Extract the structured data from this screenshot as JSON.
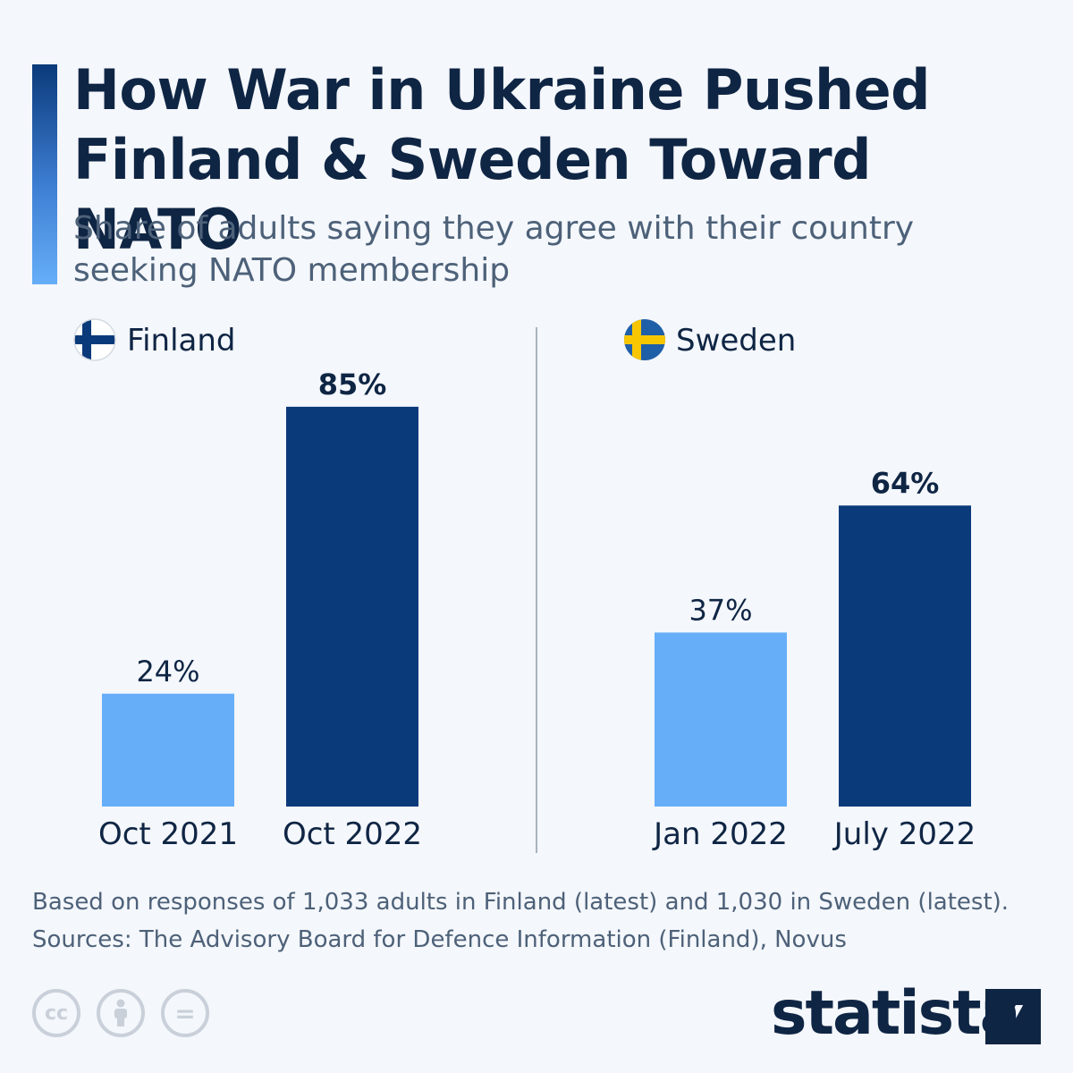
{
  "header": {
    "title_line1": "How War in Ukraine Pushed",
    "title_line2": "Finland & Sweden Toward NATO",
    "subtitle_line1": "Share of adults saying they agree with their country",
    "subtitle_line2": "seeking NATO membership"
  },
  "chart_data": {
    "type": "bar",
    "title": "How War in Ukraine Pushed Finland & Sweden Toward NATO",
    "subtitle": "Share of adults saying they agree with their country seeking NATO membership",
    "ylim": [
      0,
      100
    ],
    "unit": "%",
    "grid": false,
    "panels": [
      {
        "name": "Finland",
        "categories": [
          "Oct 2021",
          "Oct 2022"
        ],
        "values": [
          24,
          85
        ],
        "labels": [
          "24%",
          "85%"
        ],
        "colors": [
          "#66aef8",
          "#0b3a7a"
        ]
      },
      {
        "name": "Sweden",
        "categories": [
          "Jan 2022",
          "July 2022"
        ],
        "values": [
          37,
          64
        ],
        "labels": [
          "37%",
          "64%"
        ],
        "colors": [
          "#66aef8",
          "#0b3a7a"
        ]
      }
    ]
  },
  "footer": {
    "note": "Based on responses of 1,033 adults in Finland (latest) and 1,030 in Sweden (latest).",
    "sources": "Sources: The Advisory Board for Defence Information (Finland), Novus",
    "brand": "statista",
    "cc_symbol": "cc",
    "eq_symbol": "="
  },
  "colors": {
    "dark_navy": "#0f2544",
    "light_bar": "#66aef8",
    "dark_bar": "#0b3a7a",
    "finland_blue": "#0b3a7a",
    "sweden_blue": "#1f5fa8",
    "sweden_yellow": "#f7c600"
  }
}
